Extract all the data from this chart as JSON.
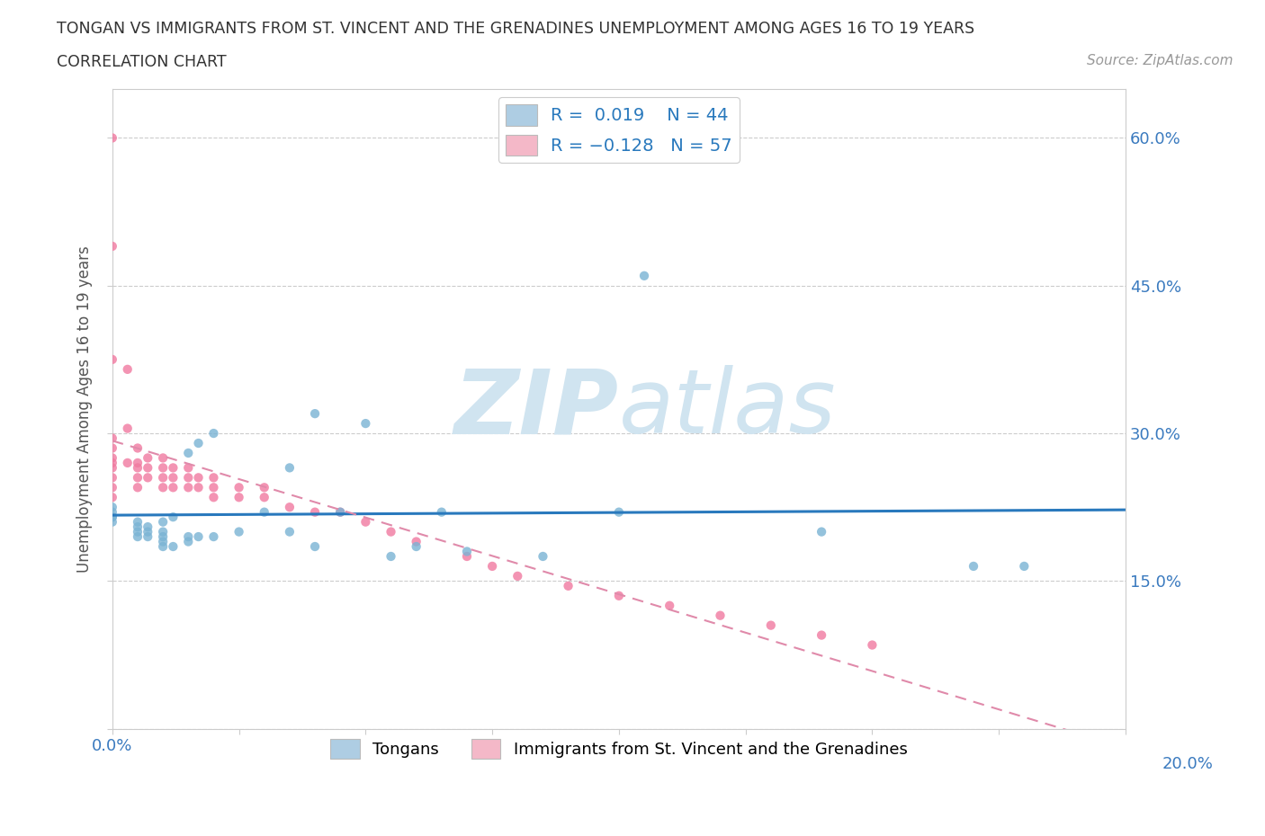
{
  "title_line1": "TONGAN VS IMMIGRANTS FROM ST. VINCENT AND THE GRENADINES UNEMPLOYMENT AMONG AGES 16 TO 19 YEARS",
  "title_line2": "CORRELATION CHART",
  "source_text": "Source: ZipAtlas.com",
  "ylabel": "Unemployment Among Ages 16 to 19 years",
  "xmin": 0.0,
  "xmax": 0.2,
  "ymin": 0.0,
  "ymax": 0.65,
  "x_ticks": [
    0.0,
    0.025,
    0.05,
    0.075,
    0.1,
    0.125,
    0.15,
    0.175,
    0.2
  ],
  "y_ticks": [
    0.0,
    0.15,
    0.3,
    0.45,
    0.6
  ],
  "y_tick_labels": [
    "",
    "15.0%",
    "30.0%",
    "45.0%",
    "60.0%"
  ],
  "tongan_R": 0.019,
  "tongan_N": 44,
  "svg_R": -0.128,
  "svg_N": 57,
  "tongan_color": "#aecde3",
  "svg_color": "#f4b8c8",
  "tongan_dot_color": "#7ab3d4",
  "svg_dot_color": "#f07aa0",
  "tongan_line_color": "#2979bd",
  "svg_line_color": "#e08aaa",
  "watermark_color": "#d0e4f0",
  "tongan_x": [
    0.0,
    0.0,
    0.0,
    0.0,
    0.0,
    0.005,
    0.005,
    0.005,
    0.005,
    0.007,
    0.007,
    0.007,
    0.01,
    0.01,
    0.01,
    0.01,
    0.01,
    0.012,
    0.012,
    0.015,
    0.015,
    0.015,
    0.017,
    0.017,
    0.02,
    0.02,
    0.025,
    0.03,
    0.035,
    0.035,
    0.04,
    0.04,
    0.045,
    0.05,
    0.055,
    0.06,
    0.065,
    0.07,
    0.085,
    0.1,
    0.105,
    0.14,
    0.17,
    0.18
  ],
  "tongan_y": [
    0.21,
    0.215,
    0.215,
    0.22,
    0.225,
    0.195,
    0.2,
    0.205,
    0.21,
    0.195,
    0.2,
    0.205,
    0.185,
    0.19,
    0.195,
    0.2,
    0.21,
    0.185,
    0.215,
    0.19,
    0.195,
    0.28,
    0.195,
    0.29,
    0.195,
    0.3,
    0.2,
    0.22,
    0.2,
    0.265,
    0.185,
    0.32,
    0.22,
    0.31,
    0.175,
    0.185,
    0.22,
    0.18,
    0.175,
    0.22,
    0.46,
    0.2,
    0.165,
    0.165
  ],
  "svg_x": [
    0.0,
    0.0,
    0.0,
    0.0,
    0.0,
    0.0,
    0.0,
    0.0,
    0.0,
    0.0,
    0.0,
    0.003,
    0.003,
    0.003,
    0.005,
    0.005,
    0.005,
    0.005,
    0.005,
    0.007,
    0.007,
    0.007,
    0.01,
    0.01,
    0.01,
    0.01,
    0.012,
    0.012,
    0.012,
    0.015,
    0.015,
    0.015,
    0.017,
    0.017,
    0.02,
    0.02,
    0.02,
    0.025,
    0.025,
    0.03,
    0.03,
    0.035,
    0.04,
    0.045,
    0.05,
    0.055,
    0.06,
    0.07,
    0.075,
    0.08,
    0.09,
    0.1,
    0.11,
    0.12,
    0.13,
    0.14,
    0.15
  ],
  "svg_y": [
    0.6,
    0.49,
    0.375,
    0.295,
    0.285,
    0.275,
    0.27,
    0.265,
    0.255,
    0.245,
    0.235,
    0.365,
    0.305,
    0.27,
    0.285,
    0.27,
    0.265,
    0.255,
    0.245,
    0.275,
    0.265,
    0.255,
    0.275,
    0.265,
    0.255,
    0.245,
    0.265,
    0.255,
    0.245,
    0.265,
    0.255,
    0.245,
    0.255,
    0.245,
    0.255,
    0.245,
    0.235,
    0.245,
    0.235,
    0.245,
    0.235,
    0.225,
    0.22,
    0.22,
    0.21,
    0.2,
    0.19,
    0.175,
    0.165,
    0.155,
    0.145,
    0.135,
    0.125,
    0.115,
    0.105,
    0.095,
    0.085
  ]
}
